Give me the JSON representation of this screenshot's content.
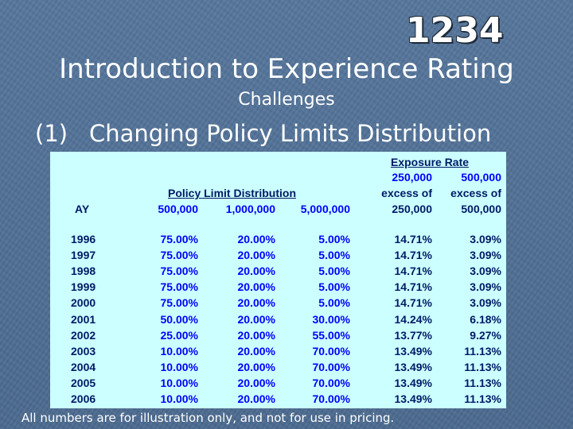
{
  "slide": {
    "logo_glyphs": "1234",
    "title": "Introduction to Experience Rating",
    "subtitle": "Challenges",
    "heading_num": "(1)",
    "heading_text": "Changing Policy Limits Distribution",
    "footnote": "All numbers are for illustration only, and not for use in pricing."
  },
  "table": {
    "header": {
      "exposure_rate": "Exposure Rate",
      "pld_title": "Policy Limit Distribution",
      "ay": "AY",
      "limit_500k": "500,000",
      "limit_1m": "1,000,000",
      "limit_5m": "5,000,000",
      "er1_line1": "250,000",
      "er1_line2": "excess of",
      "er1_line3": "250,000",
      "er2_line1": "500,000",
      "er2_line2": "excess of",
      "er2_line3": "500,000"
    },
    "rows": [
      {
        "ay": "1996",
        "p500": "75.00%",
        "p1m": "20.00%",
        "p5m": "5.00%",
        "er1": "14.71%",
        "er2": "3.09%"
      },
      {
        "ay": "1997",
        "p500": "75.00%",
        "p1m": "20.00%",
        "p5m": "5.00%",
        "er1": "14.71%",
        "er2": "3.09%"
      },
      {
        "ay": "1998",
        "p500": "75.00%",
        "p1m": "20.00%",
        "p5m": "5.00%",
        "er1": "14.71%",
        "er2": "3.09%"
      },
      {
        "ay": "1999",
        "p500": "75.00%",
        "p1m": "20.00%",
        "p5m": "5.00%",
        "er1": "14.71%",
        "er2": "3.09%"
      },
      {
        "ay": "2000",
        "p500": "75.00%",
        "p1m": "20.00%",
        "p5m": "5.00%",
        "er1": "14.71%",
        "er2": "3.09%"
      },
      {
        "ay": "2001",
        "p500": "50.00%",
        "p1m": "20.00%",
        "p5m": "30.00%",
        "er1": "14.24%",
        "er2": "6.18%"
      },
      {
        "ay": "2002",
        "p500": "25.00%",
        "p1m": "20.00%",
        "p5m": "55.00%",
        "er1": "13.77%",
        "er2": "9.27%"
      },
      {
        "ay": "2003",
        "p500": "10.00%",
        "p1m": "20.00%",
        "p5m": "70.00%",
        "er1": "13.49%",
        "er2": "11.13%"
      },
      {
        "ay": "2004",
        "p500": "10.00%",
        "p1m": "20.00%",
        "p5m": "70.00%",
        "er1": "13.49%",
        "er2": "11.13%"
      },
      {
        "ay": "2005",
        "p500": "10.00%",
        "p1m": "20.00%",
        "p5m": "70.00%",
        "er1": "13.49%",
        "er2": "11.13%"
      },
      {
        "ay": "2006",
        "p500": "10.00%",
        "p1m": "20.00%",
        "p5m": "70.00%",
        "er1": "13.49%",
        "er2": "11.13%"
      }
    ]
  },
  "colors": {
    "background": "#4f6f95",
    "panel": "#ccffff",
    "header_blue": "#0000ff",
    "text_navy": "#001a66",
    "slide_text": "#ffffff"
  }
}
